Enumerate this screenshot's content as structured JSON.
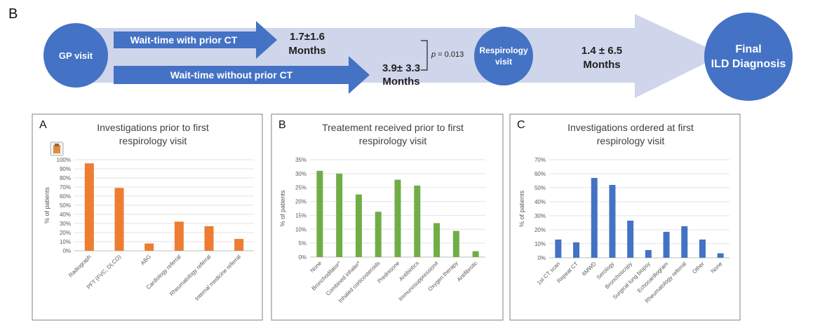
{
  "figure": {
    "panel_label": "B",
    "gp_visit": "GP visit",
    "wait_with_ct_label": "Wait-time with prior CT",
    "wait_with_ct_value": "1.7±1.6",
    "wait_with_ct_unit": "Months",
    "wait_without_ct_label": "Wait-time without prior CT",
    "wait_without_ct_value": "3.9± 3.3",
    "wait_without_ct_unit": "Months",
    "p_value_symbol": "p",
    "p_value_text": " = 0.013",
    "respirology_visit_line1": "Respirology",
    "respirology_visit_line2": "visit",
    "final_wait_value": "1.4 ± 6.5",
    "final_wait_unit": "Months",
    "final_dx_line1": "Final",
    "final_dx_line2": "ILD Diagnosis",
    "colors": {
      "flow_circle": "#4472C4",
      "flow_band": "#CFD5EA",
      "text_dark": "#1F1F1F"
    }
  },
  "chart_data": [
    {
      "panel_label": "A",
      "type": "bar",
      "title_line1": "Investigations prior to first",
      "title_line2": "respirology visit",
      "ylabel": "% of patients",
      "ylim": [
        0,
        100
      ],
      "yticks": [
        "0%",
        "10%",
        "20%",
        "30%",
        "40%",
        "50%",
        "60%",
        "70%",
        "80%",
        "90%",
        "100%"
      ],
      "categories": [
        "Radiograph",
        "PFT (FVC, DLCO)",
        "ABG",
        "Cardiology referral",
        "Rheumatology referral",
        "Internal medicine referral"
      ],
      "values": [
        96,
        69,
        8,
        32,
        27,
        13
      ],
      "color": "#ED7D31",
      "grid": true
    },
    {
      "panel_label": "B",
      "type": "bar",
      "title_line1": "Treatement received prior to first",
      "title_line2": "respirology visit",
      "ylabel": "% of patients",
      "ylim": [
        0,
        35
      ],
      "yticks": [
        "0%",
        "5%",
        "10%",
        "15%",
        "20%",
        "25%",
        "30%",
        "35%"
      ],
      "categories": [
        "None",
        "Bronchodilator^",
        "Combined inhaler*",
        "Inhaled corticosteroids",
        "Prednisone",
        "Antibiotics",
        "Immunosuppression#",
        "Oxygen therapy",
        "Antifibrotic"
      ],
      "values": [
        31,
        30,
        22.5,
        16.3,
        27.8,
        25.7,
        12.2,
        9.4,
        2.1
      ],
      "color": "#70AD47",
      "grid": true
    },
    {
      "panel_label": "C",
      "type": "bar",
      "title_line1": "Investigations ordered at first",
      "title_line2": "respirology visit",
      "ylabel": "% of patients",
      "ylim": [
        0,
        70
      ],
      "yticks": [
        "0%",
        "10%",
        "20%",
        "30%",
        "40%",
        "50%",
        "60%",
        "70%"
      ],
      "categories": [
        "1st CT scan",
        "Repeat CT",
        "6MWD",
        "Serology",
        "Bronchoscopy",
        "Surgical lung biopsy",
        "Echocardiogram",
        "Rheumatology referral",
        "Other",
        "None"
      ],
      "values": [
        13,
        11,
        57,
        52,
        26.5,
        5.5,
        18.5,
        22.5,
        13,
        3.2
      ],
      "color": "#4472C4",
      "grid": true
    }
  ]
}
